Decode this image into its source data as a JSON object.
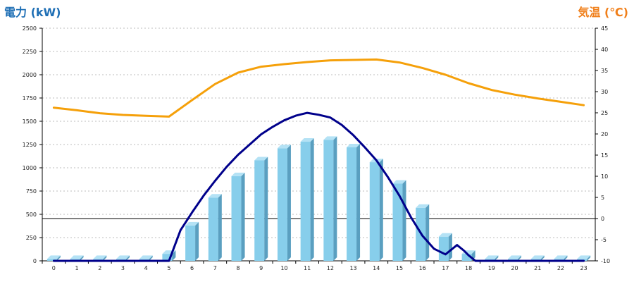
{
  "chart_data": {
    "type": "bar",
    "title_left": "電力 (kW)",
    "title_right": "気温 (℃)",
    "x_categories": [
      "0",
      "1",
      "2",
      "3",
      "4",
      "5",
      "6",
      "7",
      "8",
      "9",
      "10",
      "11",
      "12",
      "13",
      "14",
      "15",
      "16",
      "17",
      "18",
      "19",
      "20",
      "21",
      "22",
      "23"
    ],
    "left_axis": {
      "label": "電力 (kW)",
      "range": [
        0,
        2500
      ],
      "ticks": [
        0,
        250,
        500,
        750,
        1000,
        1250,
        1500,
        1750,
        2000,
        2250,
        2500
      ]
    },
    "right_axis": {
      "label": "気温 (℃)",
      "range": [
        -10,
        45
      ],
      "ticks": [
        -10,
        -5,
        0,
        5,
        10,
        15,
        20,
        25,
        30,
        35,
        40,
        45
      ]
    },
    "grid": true,
    "series": [
      {
        "kind": "bar",
        "axis": "left",
        "color": "#87ceeb",
        "values": [
          20,
          20,
          20,
          20,
          20,
          75,
          380,
          680,
          910,
          1080,
          1210,
          1280,
          1300,
          1220,
          1060,
          830,
          570,
          260,
          75,
          20,
          20,
          20,
          20,
          20
        ]
      },
      {
        "kind": "line",
        "axis": "left",
        "color": "#00008b",
        "x": [
          0,
          1,
          2,
          3,
          4,
          5,
          5.5,
          6,
          6.5,
          7,
          7.5,
          8,
          8.5,
          9,
          9.5,
          10,
          10.5,
          11,
          11.5,
          12,
          12.5,
          13,
          13.5,
          14,
          14.5,
          15,
          15.5,
          16,
          16.5,
          17,
          17.1,
          17.5,
          17.8,
          18,
          18.3,
          19,
          20,
          21,
          22,
          23
        ],
        "values": [
          0,
          0,
          0,
          0,
          0,
          0,
          330,
          520,
          700,
          860,
          1010,
          1140,
          1250,
          1360,
          1440,
          1510,
          1560,
          1590,
          1570,
          1540,
          1460,
          1350,
          1220,
          1080,
          900,
          700,
          470,
          270,
          130,
          70,
          90,
          170,
          110,
          60,
          0,
          0,
          0,
          0,
          0,
          0
        ]
      },
      {
        "kind": "line",
        "axis": "right",
        "color": "#f5a00a",
        "x": [
          0,
          1,
          2,
          3,
          4,
          5,
          6,
          7,
          8,
          9,
          10,
          11,
          12,
          13,
          14,
          15,
          16,
          17,
          18,
          19,
          20,
          21,
          22,
          23
        ],
        "values": [
          26.2,
          25.6,
          24.9,
          24.5,
          24.3,
          24.1,
          28.0,
          31.8,
          34.5,
          35.9,
          36.5,
          37.0,
          37.4,
          37.5,
          37.6,
          36.9,
          35.6,
          34.0,
          32.0,
          30.4,
          29.3,
          28.4,
          27.6,
          26.8
        ]
      }
    ]
  }
}
